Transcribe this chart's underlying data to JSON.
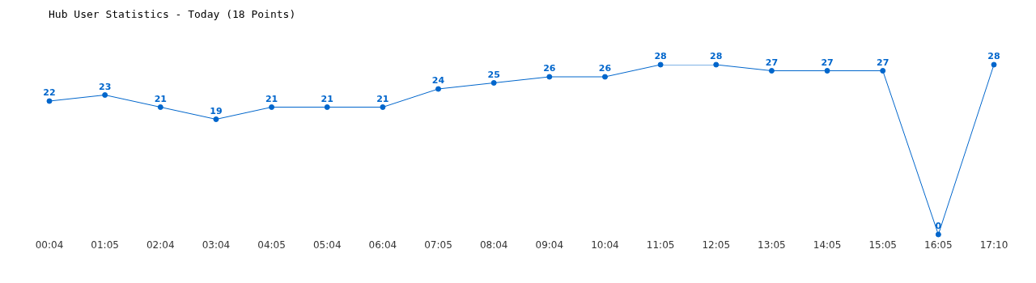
{
  "chart_data": {
    "type": "line",
    "title": "Hub User Statistics - Today (18 Points)",
    "categories": [
      "00:04",
      "01:05",
      "02:04",
      "03:04",
      "04:05",
      "05:04",
      "06:04",
      "07:05",
      "08:04",
      "09:04",
      "10:04",
      "11:05",
      "12:05",
      "13:05",
      "14:05",
      "15:05",
      "16:05",
      "17:10"
    ],
    "series": [
      {
        "color": "#0066cc",
        "values": [
          22,
          23,
          21,
          19,
          21,
          21,
          21,
          24,
          25,
          26,
          26,
          28,
          28,
          27,
          27,
          27,
          0,
          28
        ]
      }
    ],
    "data_labels": true,
    "marker": "circle",
    "line_style": "solid",
    "grid": false,
    "tick_labels": "x"
  }
}
